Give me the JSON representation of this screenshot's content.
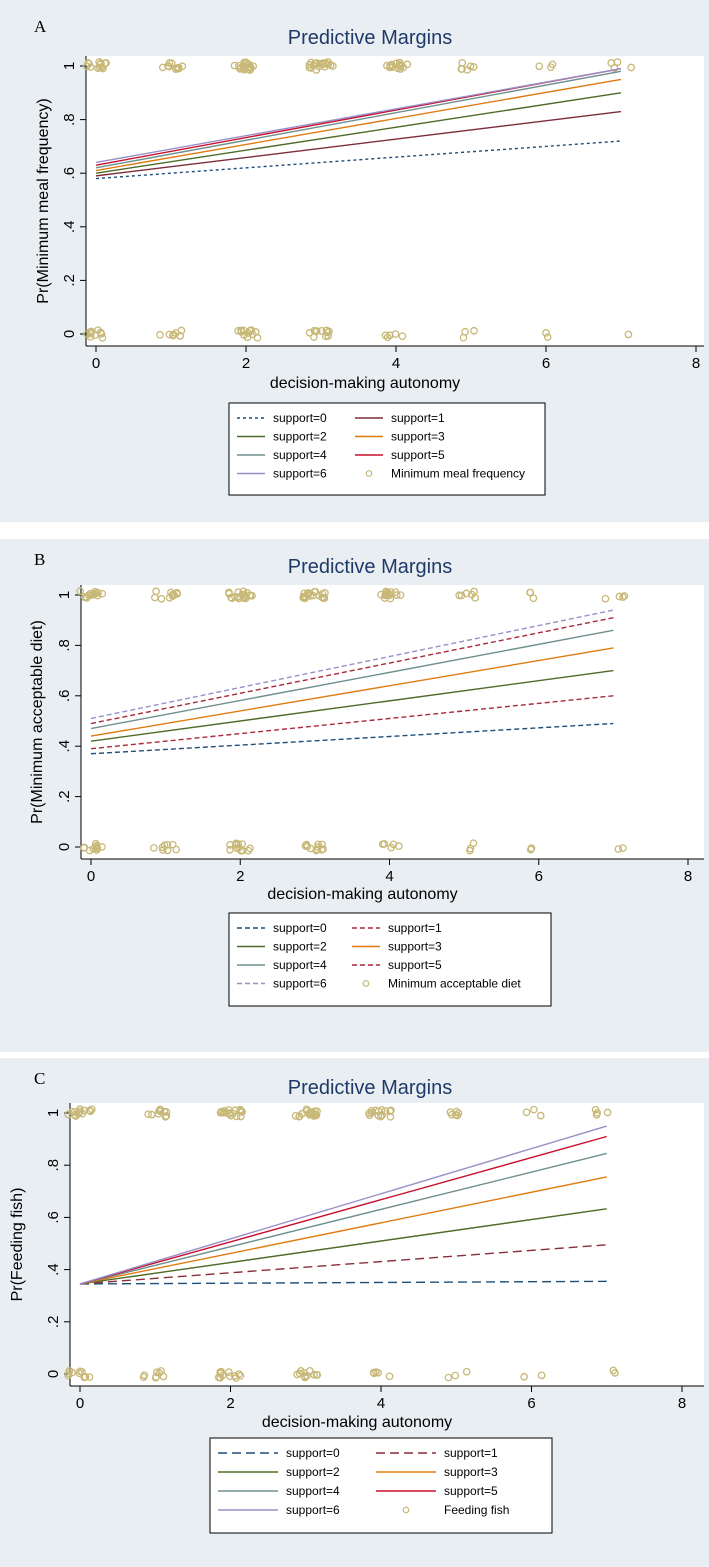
{
  "chart_data": [
    {
      "type": "line",
      "panel_letter": "A",
      "title": "Predictive Margins",
      "xlabel": "decision-making autonomy",
      "ylabel": "Pr(Minimum meal frequency)",
      "xlim": [
        0,
        8
      ],
      "ylim": [
        0,
        1
      ],
      "x_ticks": [
        "0",
        "2",
        "4",
        "6",
        "8"
      ],
      "y_ticks": [
        "0",
        ".2",
        ".4",
        ".6",
        ".8",
        "1"
      ],
      "legend_placement": "bottom",
      "series": [
        {
          "name": "support=0",
          "x": [
            0,
            7
          ],
          "values": [
            0.58,
            0.72
          ],
          "color": "#1f4e79",
          "dash": "dot"
        },
        {
          "name": "support=1",
          "x": [
            0,
            7
          ],
          "values": [
            0.59,
            0.83
          ],
          "color": "#7b2d3a",
          "dash": "solid"
        },
        {
          "name": "support=2",
          "x": [
            0,
            7
          ],
          "values": [
            0.6,
            0.9
          ],
          "color": "#4f6b2a",
          "dash": "solid"
        },
        {
          "name": "support=3",
          "x": [
            0,
            7
          ],
          "values": [
            0.61,
            0.95
          ],
          "color": "#e07b10",
          "dash": "solid"
        },
        {
          "name": "support=4",
          "x": [
            0,
            7
          ],
          "values": [
            0.62,
            0.98
          ],
          "color": "#6f8f8f",
          "dash": "solid"
        },
        {
          "name": "support=5",
          "x": [
            0,
            7
          ],
          "values": [
            0.63,
            0.99
          ],
          "color": "#c8102e",
          "dash": "solid"
        },
        {
          "name": "support=6",
          "x": [
            0,
            7
          ],
          "values": [
            0.64,
            0.99
          ],
          "color": "#9a8fc8",
          "dash": "solid"
        }
      ],
      "scatter": {
        "name": "Minimum meal frequency",
        "color": "#c8b878",
        "top_x": [
          0,
          1,
          2,
          3,
          4,
          5,
          6,
          7
        ],
        "top_density": [
          14,
          10,
          18,
          20,
          14,
          6,
          3,
          4
        ],
        "bottom_x": [
          0,
          1,
          2,
          3,
          4,
          5,
          6,
          7
        ],
        "bottom_density": [
          10,
          8,
          12,
          11,
          5,
          3,
          2,
          1
        ]
      }
    },
    {
      "type": "line",
      "panel_letter": "B",
      "title": "Predictive Margins",
      "xlabel": "decision-making autonomy",
      "ylabel": "Pr(Minimum acceptable diet)",
      "xlim": [
        0,
        8
      ],
      "ylim": [
        0,
        1
      ],
      "x_ticks": [
        "0",
        "2",
        "4",
        "6",
        "8"
      ],
      "y_ticks": [
        "0",
        ".2",
        ".4",
        ".6",
        ".8",
        "1"
      ],
      "legend_placement": "bottom",
      "series": [
        {
          "name": "support=0",
          "x": [
            0,
            7
          ],
          "values": [
            0.37,
            0.49
          ],
          "color": "#1f4e79",
          "dash": "dash"
        },
        {
          "name": "support=1",
          "x": [
            0,
            7
          ],
          "values": [
            0.39,
            0.6
          ],
          "color": "#a8283c",
          "dash": "dash"
        },
        {
          "name": "support=2",
          "x": [
            0,
            7
          ],
          "values": [
            0.42,
            0.7
          ],
          "color": "#4f6b2a",
          "dash": "solid"
        },
        {
          "name": "support=3",
          "x": [
            0,
            7
          ],
          "values": [
            0.44,
            0.79
          ],
          "color": "#e07b10",
          "dash": "solid"
        },
        {
          "name": "support=4",
          "x": [
            0,
            7
          ],
          "values": [
            0.47,
            0.86
          ],
          "color": "#6f8f8f",
          "dash": "solid"
        },
        {
          "name": "support=5",
          "x": [
            0,
            7
          ],
          "values": [
            0.49,
            0.91
          ],
          "color": "#a8283c",
          "dash": "dash"
        },
        {
          "name": "support=6",
          "x": [
            0,
            7
          ],
          "values": [
            0.51,
            0.94
          ],
          "color": "#9a8fc8",
          "dash": "dash"
        }
      ],
      "scatter": {
        "name": "Minimum acceptable diet",
        "color": "#c8b878",
        "top_x": [
          0,
          1,
          2,
          3,
          4,
          5,
          6,
          7
        ],
        "top_density": [
          14,
          10,
          18,
          20,
          14,
          6,
          3,
          4
        ],
        "bottom_x": [
          0,
          1,
          2,
          3,
          4,
          5,
          6,
          7
        ],
        "bottom_density": [
          10,
          8,
          12,
          11,
          5,
          3,
          2,
          2
        ]
      }
    },
    {
      "type": "line",
      "panel_letter": "C",
      "title": "Predictive Margins",
      "xlabel": "decision-making autonomy",
      "ylabel": "Pr(Feeding fish)",
      "xlim": [
        0,
        8
      ],
      "ylim": [
        0,
        1
      ],
      "x_ticks": [
        "0",
        "2",
        "4",
        "6",
        "8"
      ],
      "y_ticks": [
        "0",
        ".2",
        ".4",
        ".6",
        ".8",
        "1"
      ],
      "legend_placement": "bottom",
      "series": [
        {
          "name": "support=0",
          "x": [
            0,
            7
          ],
          "values": [
            0.345,
            0.355
          ],
          "color": "#1f4e79",
          "dash": "longdash"
        },
        {
          "name": "support=1",
          "x": [
            0,
            7
          ],
          "values": [
            0.345,
            0.495
          ],
          "color": "#8b2d3a",
          "dash": "longdash"
        },
        {
          "name": "support=2",
          "x": [
            0,
            7
          ],
          "values": [
            0.345,
            0.633
          ],
          "color": "#4f6b2a",
          "dash": "solid"
        },
        {
          "name": "support=3",
          "x": [
            0,
            7
          ],
          "values": [
            0.345,
            0.755
          ],
          "color": "#e07b10",
          "dash": "solid"
        },
        {
          "name": "support=4",
          "x": [
            0,
            7
          ],
          "values": [
            0.345,
            0.845
          ],
          "color": "#6f8f8f",
          "dash": "solid"
        },
        {
          "name": "support=5",
          "x": [
            0,
            7
          ],
          "values": [
            0.345,
            0.91
          ],
          "color": "#c8102e",
          "dash": "solid"
        },
        {
          "name": "support=6",
          "x": [
            0,
            7
          ],
          "values": [
            0.345,
            0.95
          ],
          "color": "#9a8fc8",
          "dash": "solid"
        }
      ],
      "scatter": {
        "name": "Feeding fish",
        "color": "#c8b878",
        "top_x": [
          0,
          1,
          2,
          3,
          4,
          5,
          6,
          7
        ],
        "top_density": [
          14,
          10,
          18,
          20,
          14,
          6,
          3,
          4
        ],
        "bottom_x": [
          0,
          1,
          2,
          3,
          4,
          5,
          6,
          7
        ],
        "bottom_density": [
          10,
          8,
          12,
          11,
          5,
          3,
          2,
          2
        ]
      }
    }
  ]
}
